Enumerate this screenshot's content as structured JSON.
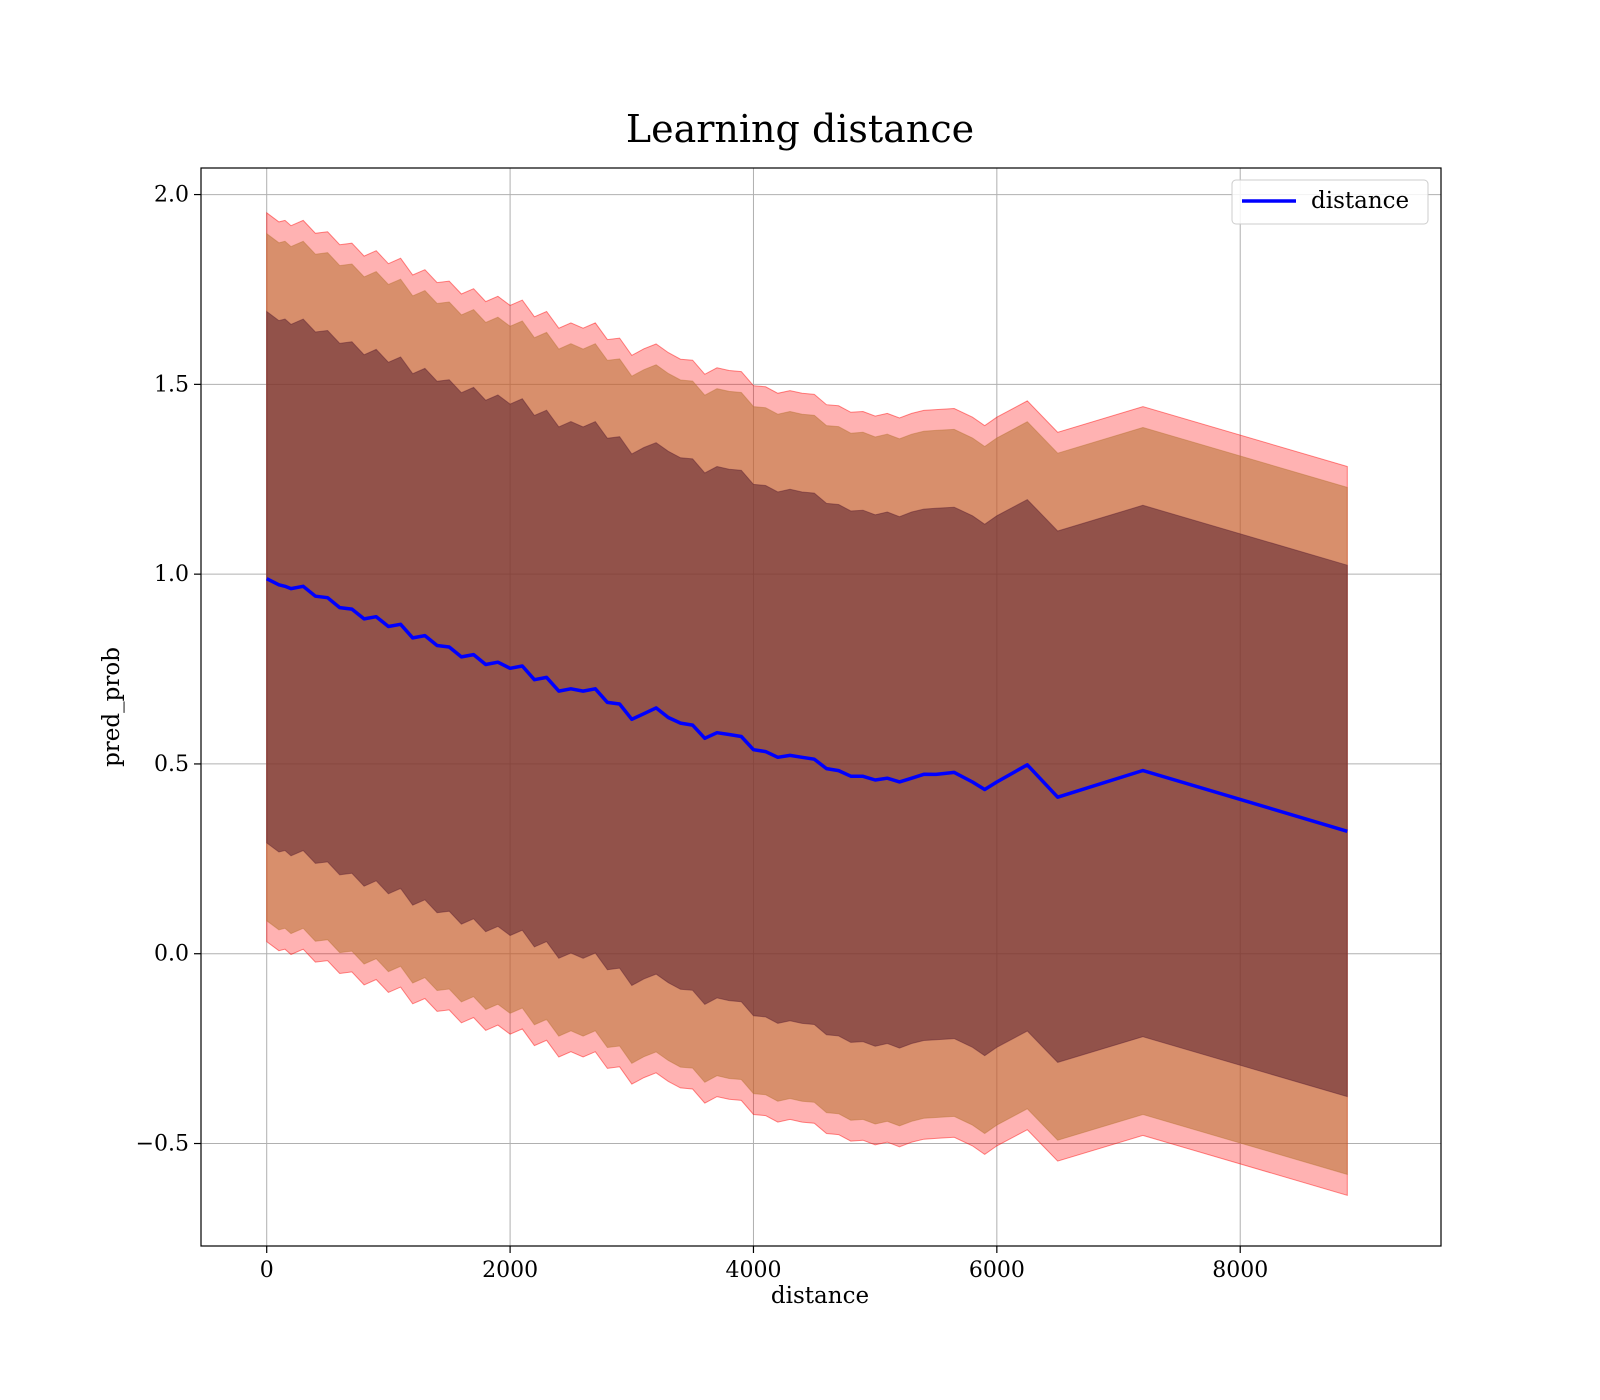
{
  "chart_data": {
    "type": "line",
    "title": "Learning distance",
    "xlabel": "distance",
    "ylabel": "pred_prob",
    "xlim": [
      -540,
      9650
    ],
    "ylim": [
      -0.77,
      2.07
    ],
    "xticks": [
      0,
      2000,
      4000,
      6000,
      8000
    ],
    "yticks": [
      -0.5,
      0.0,
      0.5,
      1.0,
      1.5,
      2.0
    ],
    "xtick_labels": [
      "0",
      "2000",
      "4000",
      "6000",
      "8000"
    ],
    "ytick_labels": [
      "−0.5",
      "0.0",
      "0.5",
      "1.0",
      "1.5",
      "2.0"
    ],
    "grid": true,
    "legend": {
      "position": "top-right",
      "entries": [
        "distance"
      ]
    },
    "colors": {
      "line": "#0000ff",
      "band_outer": "#ff0000",
      "band_middle": "#b87333",
      "band_inner": "#5a2030",
      "grid": "#b0b0b0"
    },
    "series": [
      {
        "name": "distance",
        "x": [
          0,
          100,
          150,
          200,
          300,
          400,
          500,
          600,
          700,
          800,
          900,
          1000,
          1100,
          1200,
          1300,
          1400,
          1500,
          1600,
          1700,
          1800,
          1900,
          2000,
          2100,
          2200,
          2300,
          2400,
          2500,
          2600,
          2700,
          2800,
          2900,
          3000,
          3100,
          3200,
          3300,
          3400,
          3500,
          3600,
          3700,
          3800,
          3900,
          4000,
          4100,
          4200,
          4300,
          4400,
          4500,
          4600,
          4700,
          4800,
          4900,
          5000,
          5100,
          5200,
          5300,
          5400,
          5500,
          5650,
          5800,
          5900,
          6000,
          6250,
          6500,
          7200,
          8880
        ],
        "y": [
          0.98,
          0.98,
          0.96,
          0.97,
          0.96,
          0.95,
          0.93,
          0.92,
          0.9,
          0.89,
          0.88,
          0.87,
          0.86,
          0.84,
          0.83,
          0.82,
          0.8,
          0.79,
          0.78,
          0.77,
          0.76,
          0.76,
          0.75,
          0.73,
          0.72,
          0.7,
          0.69,
          0.7,
          0.69,
          0.67,
          0.65,
          0.62,
          0.63,
          0.65,
          0.62,
          0.61,
          0.6,
          0.57,
          0.58,
          0.58,
          0.57,
          0.54,
          0.53,
          0.52,
          0.52,
          0.52,
          0.51,
          0.49,
          0.48,
          0.47,
          0.465,
          0.46,
          0.46,
          0.455,
          0.46,
          0.475,
          0.47,
          0.48,
          0.45,
          0.435,
          0.45,
          0.5,
          0.41,
          0.485,
          0.32
        ]
      }
    ],
    "bands": [
      {
        "level": "outer",
        "half_width_start": 0.96,
        "half_width_end": 0.96
      },
      {
        "level": "middle",
        "half_width_start": 0.905,
        "half_width_end": 0.905
      },
      {
        "level": "inner",
        "half_width_start": 0.7,
        "half_width_end": 0.7
      }
    ]
  }
}
